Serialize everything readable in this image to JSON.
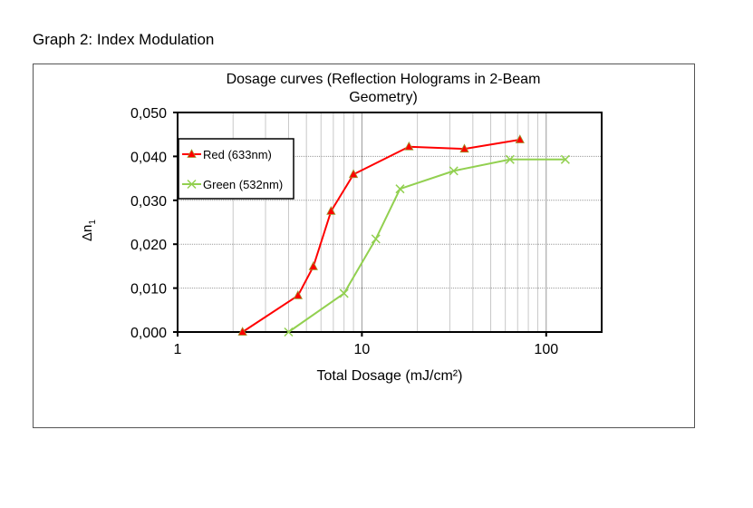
{
  "heading": "Graph 2: Index Modulation",
  "chart_data": {
    "type": "line",
    "title_lines": [
      "Dosage curves (Reflection Holograms in 2-Beam",
      "Geometry)"
    ],
    "xlabel": "Total Dosage (mJ/cm²)",
    "ylabel": "Δn",
    "ylabel_sub": "1",
    "x_scale": "log",
    "xlim": [
      1,
      200
    ],
    "ylim": [
      0,
      0.05
    ],
    "x_ticks": [
      1,
      10,
      100
    ],
    "x_tick_labels": [
      "1",
      "10",
      "100"
    ],
    "y_ticks": [
      0,
      0.01,
      0.02,
      0.03,
      0.04,
      0.05
    ],
    "y_tick_labels": [
      "0,000",
      "0,010",
      "0,020",
      "0,030",
      "0,040",
      "0,050"
    ],
    "grid": true,
    "legend_position": "top-left",
    "series": [
      {
        "name": "Red (633nm)",
        "color": "#ff0000",
        "marker": "triangle",
        "x": [
          2.25,
          4.5,
          5.45,
          6.8,
          9.0,
          18,
          36,
          72
        ],
        "y": [
          0.0,
          0.0083,
          0.0149,
          0.0275,
          0.0359,
          0.0422,
          0.0417,
          0.0438
        ]
      },
      {
        "name": "Green (532nm)",
        "color": "#92d050",
        "marker": "x",
        "x": [
          4.0,
          8.0,
          11.9,
          16.1,
          31.5,
          63.6,
          127
        ],
        "y": [
          0.0,
          0.0088,
          0.0212,
          0.0326,
          0.0367,
          0.0393,
          0.0393
        ]
      }
    ]
  }
}
